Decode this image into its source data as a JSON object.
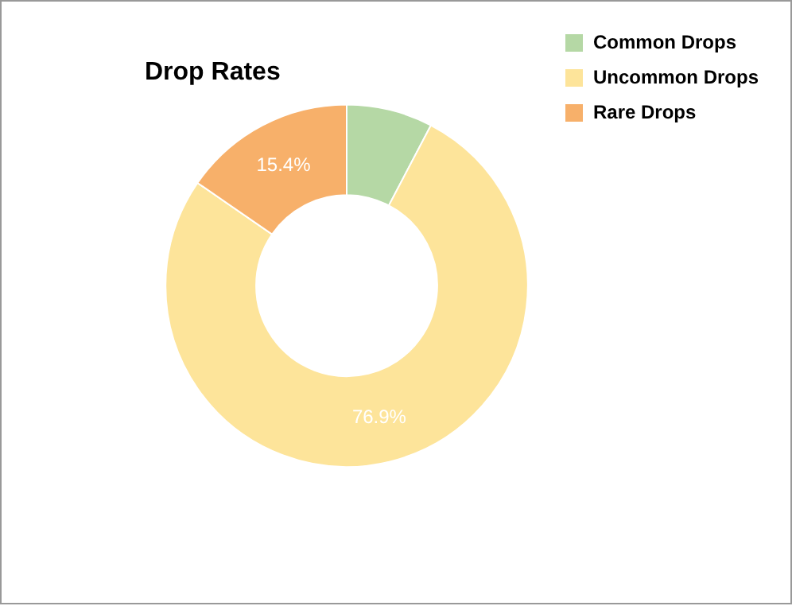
{
  "chart_data": {
    "type": "donut",
    "title": "Drop Rates",
    "categories": [
      "Common Drops",
      "Uncommon Drops",
      "Rare Drops"
    ],
    "values": [
      7.7,
      76.9,
      15.4
    ],
    "colors": [
      "#b5d8a5",
      "#fde49a",
      "#f7b06a"
    ],
    "value_labels": [
      null,
      "76.9%",
      "15.4%"
    ],
    "legend": "top right"
  }
}
